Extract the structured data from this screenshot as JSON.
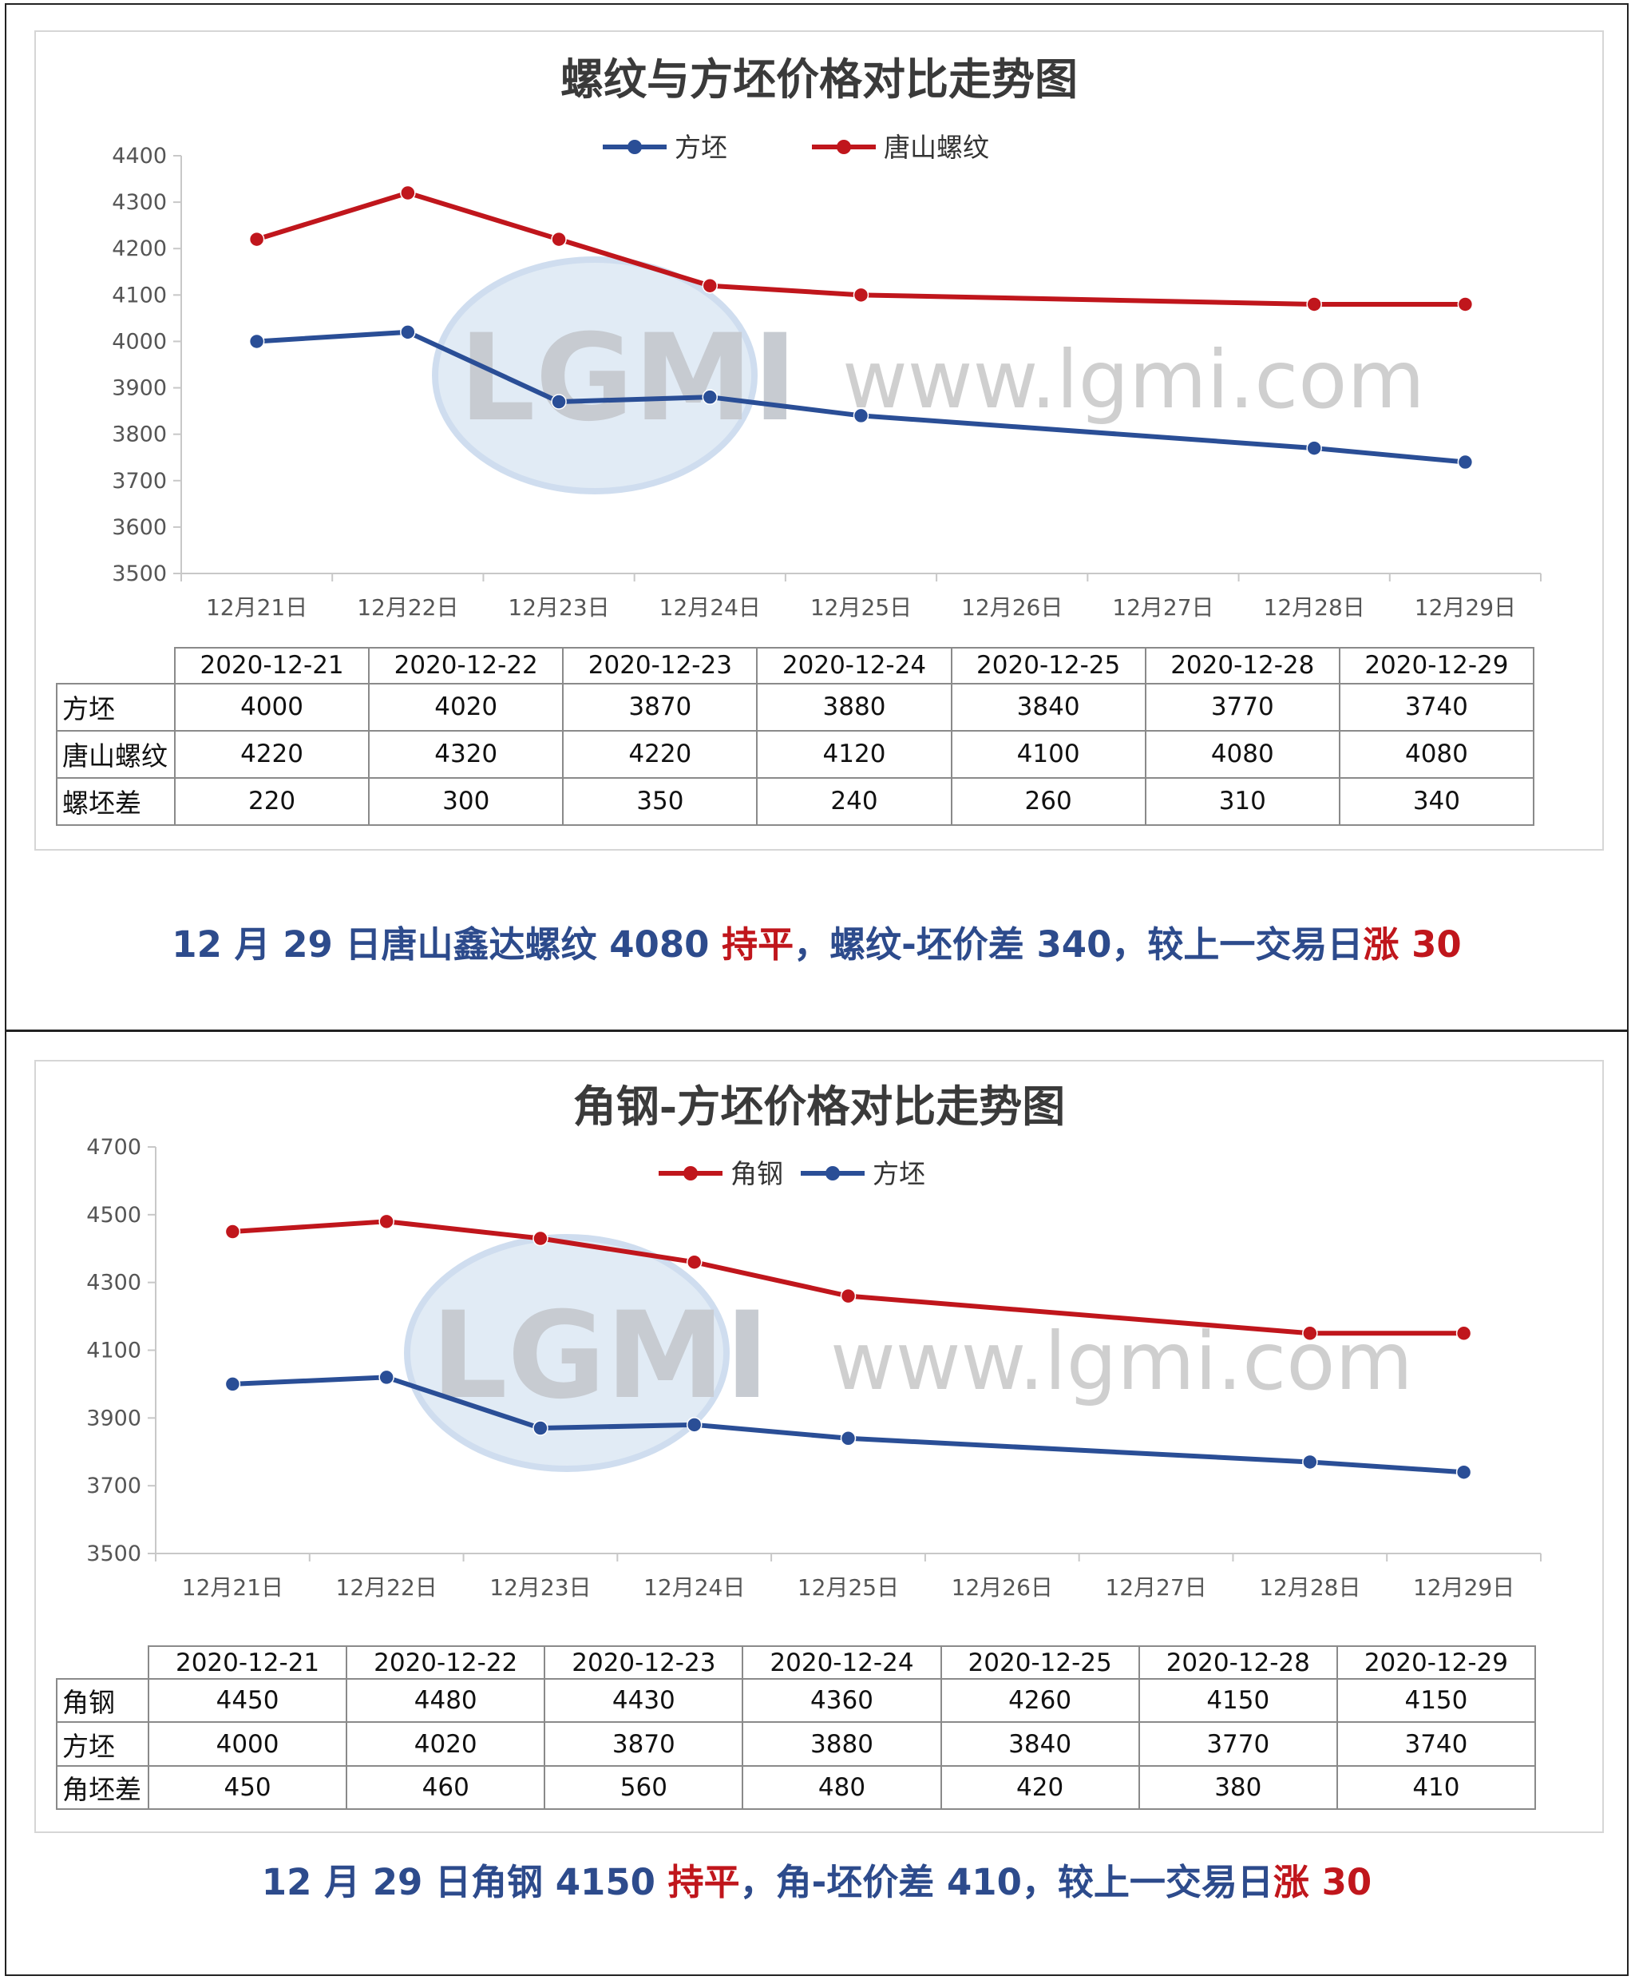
{
  "watermark": {
    "logo_text": "LGMI",
    "site": "www.lgmi.com"
  },
  "charts": [
    {
      "title": "螺纹与方坯价格对比走势图",
      "legend": [
        "方坯",
        "唐山螺纹"
      ],
      "x_labels": [
        "12月21日",
        "12月22日",
        "12月23日",
        "12月24日",
        "12月25日",
        "12月26日",
        "12月27日",
        "12月28日",
        "12月29日"
      ],
      "y_ticks": [
        "4400",
        "4300",
        "4200",
        "4100",
        "4000",
        "3900",
        "3800",
        "3700",
        "3600",
        "3500"
      ],
      "table": {
        "dates": [
          "2020-12-21",
          "2020-12-22",
          "2020-12-23",
          "2020-12-24",
          "2020-12-25",
          "2020-12-28",
          "2020-12-29"
        ],
        "rows": [
          {
            "label": "方坯",
            "values": [
              "4000",
              "4020",
              "3870",
              "3880",
              "3840",
              "3770",
              "3740"
            ]
          },
          {
            "label": "唐山螺纹",
            "values": [
              "4220",
              "4320",
              "4220",
              "4120",
              "4100",
              "4080",
              "4080"
            ]
          },
          {
            "label": "螺坯差",
            "values": [
              "220",
              "300",
              "350",
              "240",
              "260",
              "310",
              "340"
            ]
          }
        ]
      },
      "caption": {
        "p1": "12 月 29 日唐山鑫达螺纹 4080 ",
        "p2": "持平",
        "p3": "，螺纹-坯价差 340，较上一交易日",
        "p4": "涨 30"
      }
    },
    {
      "title": "角钢-方坯价格对比走势图",
      "legend": [
        "角钢",
        "方坯"
      ],
      "x_labels": [
        "12月21日",
        "12月22日",
        "12月23日",
        "12月24日",
        "12月25日",
        "12月26日",
        "12月27日",
        "12月28日",
        "12月29日"
      ],
      "y_ticks": [
        "4700",
        "4500",
        "4300",
        "4100",
        "3900",
        "3700",
        "3500"
      ],
      "table": {
        "dates": [
          "2020-12-21",
          "2020-12-22",
          "2020-12-23",
          "2020-12-24",
          "2020-12-25",
          "2020-12-28",
          "2020-12-29"
        ],
        "rows": [
          {
            "label": "角钢",
            "values": [
              "4450",
              "4480",
              "4430",
              "4360",
              "4260",
              "4150",
              "4150"
            ]
          },
          {
            "label": "方坯",
            "values": [
              "4000",
              "4020",
              "3870",
              "3880",
              "3840",
              "3770",
              "3740"
            ]
          },
          {
            "label": "角坯差",
            "values": [
              "450",
              "460",
              "560",
              "480",
              "420",
              "380",
              "410"
            ]
          }
        ]
      },
      "caption": {
        "p1": "12 月 29 日角钢 4150 ",
        "p2": "持平",
        "p3": "，角-坯价差 410，较上一交易日",
        "p4": "涨 30"
      }
    }
  ],
  "chart_data": [
    {
      "type": "line",
      "title": "螺纹与方坯价格对比走势图",
      "categories": [
        "12月21日",
        "12月22日",
        "12月23日",
        "12月24日",
        "12月25日",
        "12月26日",
        "12月27日",
        "12月28日",
        "12月29日"
      ],
      "series": [
        {
          "name": "方坯",
          "color": "#2a4e96",
          "values": [
            4000,
            4020,
            3870,
            3880,
            3840,
            null,
            null,
            3770,
            3740
          ]
        },
        {
          "name": "唐山螺纹",
          "color": "#c0161c",
          "values": [
            4220,
            4320,
            4220,
            4120,
            4100,
            null,
            null,
            4080,
            4080
          ]
        }
      ],
      "ylim": [
        3500,
        4400
      ],
      "grid": false,
      "legend_position": "top-center"
    },
    {
      "type": "line",
      "title": "角钢-方坯价格对比走势图",
      "categories": [
        "12月21日",
        "12月22日",
        "12月23日",
        "12月24日",
        "12月25日",
        "12月26日",
        "12月27日",
        "12月28日",
        "12月29日"
      ],
      "series": [
        {
          "name": "角钢",
          "color": "#c0161c",
          "values": [
            4450,
            4480,
            4430,
            4360,
            4260,
            null,
            null,
            4150,
            4150
          ]
        },
        {
          "name": "方坯",
          "color": "#2a4e96",
          "values": [
            4000,
            4020,
            3870,
            3880,
            3840,
            null,
            null,
            3770,
            3740
          ]
        }
      ],
      "ylim": [
        3500,
        4700
      ],
      "grid": false,
      "legend_position": "top-center"
    }
  ]
}
